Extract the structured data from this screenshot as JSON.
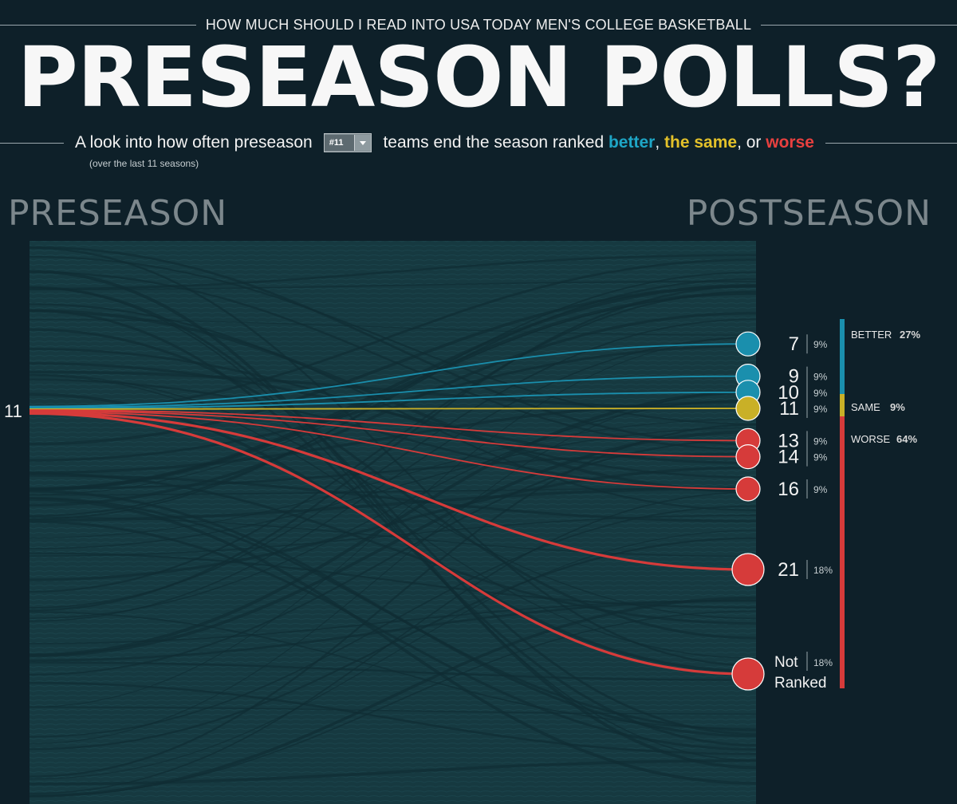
{
  "header": {
    "kicker": "HOW MUCH SHOULD I READ INTO USA TODAY MEN'S COLLEGE BASKETBALL",
    "title": "PRESEASON POLLS?",
    "subtitle_pre": "A look into how often preseason",
    "subtitle_mid": "teams end the season ranked",
    "word_better": "better",
    "word_same": "the same",
    "word_worse": "worse",
    "comma1": ",",
    "comma2": ", or",
    "note": "(over the last 11 seasons)"
  },
  "selector": {
    "value": "#11"
  },
  "labels": {
    "preseason": "PRESEASON",
    "postseason": "POSTSEASON"
  },
  "colors": {
    "background": "#0e2029",
    "band": "#163940",
    "better": "#1a8fad",
    "same": "#c9b027",
    "worse": "#d63b3a"
  },
  "chart_data": {
    "type": "sankey",
    "source_rank": "11",
    "source_label": "11",
    "flows": [
      {
        "target": "7",
        "pct": "9%",
        "category": "better",
        "share": 0.09
      },
      {
        "target": "9",
        "pct": "9%",
        "category": "better",
        "share": 0.09
      },
      {
        "target": "10",
        "pct": "9%",
        "category": "better",
        "share": 0.09
      },
      {
        "target": "11",
        "pct": "9%",
        "category": "same",
        "share": 0.09
      },
      {
        "target": "13",
        "pct": "9%",
        "category": "worse",
        "share": 0.09
      },
      {
        "target": "14",
        "pct": "9%",
        "category": "worse",
        "share": 0.09
      },
      {
        "target": "16",
        "pct": "9%",
        "category": "worse",
        "share": 0.09
      },
      {
        "target": "21",
        "pct": "18%",
        "category": "worse",
        "share": 0.18
      },
      {
        "target": "Not Ranked",
        "pct": "18%",
        "category": "worse",
        "share": 0.18
      }
    ],
    "summary": [
      {
        "label": "BETTER",
        "pct": "27%",
        "category": "better"
      },
      {
        "label": "SAME",
        "pct": "9%",
        "category": "same"
      },
      {
        "label": "WORSE",
        "pct": "64%",
        "category": "worse"
      }
    ]
  }
}
